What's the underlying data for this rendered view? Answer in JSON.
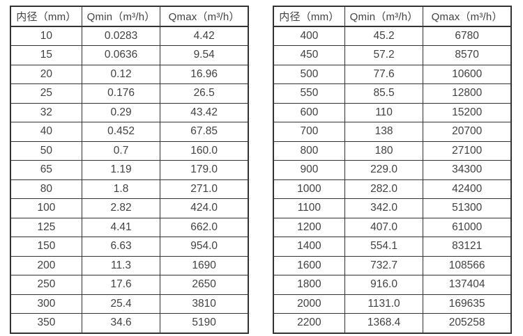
{
  "colors": {
    "background": "#ffffff",
    "text": "#414141",
    "border": "#333333"
  },
  "tables": [
    {
      "name": "flow-rate-table-small-diameters",
      "headers": [
        "内径（mm）",
        "Qmin（m³/h）",
        "Qmax（m³/h）"
      ],
      "rows": [
        [
          "10",
          "0.0283",
          "4.42"
        ],
        [
          "15",
          "0.0636",
          "9.54"
        ],
        [
          "20",
          "0.12",
          "16.96"
        ],
        [
          "25",
          "0.176",
          "26.5"
        ],
        [
          "32",
          "0.29",
          "43.42"
        ],
        [
          "40",
          "0.452",
          "67.85"
        ],
        [
          "50",
          "0.7",
          "160.0"
        ],
        [
          "65",
          "1.19",
          "179.0"
        ],
        [
          "80",
          "1.8",
          "271.0"
        ],
        [
          "100",
          "2.82",
          "424.0"
        ],
        [
          "125",
          "4.41",
          "662.0"
        ],
        [
          "150",
          "6.63",
          "954.0"
        ],
        [
          "200",
          "11.3",
          "1690"
        ],
        [
          "250",
          "17.6",
          "2650"
        ],
        [
          "300",
          "25.4",
          "3810"
        ],
        [
          "350",
          "34.6",
          "5190"
        ]
      ]
    },
    {
      "name": "flow-rate-table-large-diameters",
      "headers": [
        "内径（mm）",
        "Qmin（m³/h）",
        "Qmax（m³/h）"
      ],
      "rows": [
        [
          "400",
          "45.2",
          "6780"
        ],
        [
          "450",
          "57.2",
          "8570"
        ],
        [
          "500",
          "77.6",
          "10600"
        ],
        [
          "550",
          "85.5",
          "12800"
        ],
        [
          "600",
          "110",
          "15200"
        ],
        [
          "700",
          "138",
          "20700"
        ],
        [
          "800",
          "180",
          "27100"
        ],
        [
          "900",
          "229.0",
          "34300"
        ],
        [
          "1000",
          "282.0",
          "42400"
        ],
        [
          "1100",
          "342.0",
          "51300"
        ],
        [
          "1200",
          "407.0",
          "61000"
        ],
        [
          "1400",
          "554.1",
          "83121"
        ],
        [
          "1600",
          "732.7",
          "108566"
        ],
        [
          "1800",
          "916.0",
          "137404"
        ],
        [
          "2000",
          "1131.0",
          "169635"
        ],
        [
          "2200",
          "1368.4",
          "205258"
        ]
      ]
    }
  ]
}
